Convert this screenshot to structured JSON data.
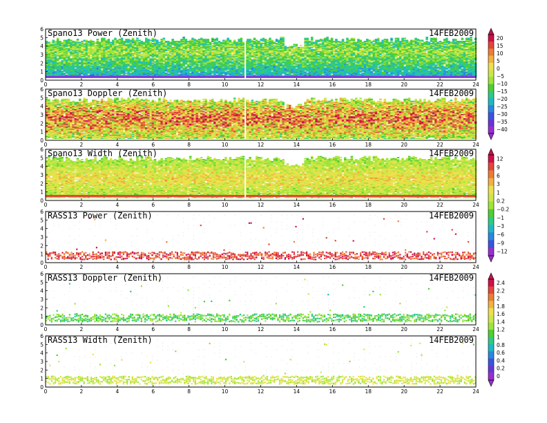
{
  "colorbars": [
    {
      "name": "power-doppler",
      "panels": [
        0,
        1
      ],
      "labels": [
        "20",
        "15",
        "10",
        "5",
        "0",
        "−5",
        "−10",
        "−15",
        "−20",
        "−25",
        "−30",
        "−35",
        "−40"
      ],
      "colors": [
        "#d0104a",
        "#e3463a",
        "#ee7d33",
        "#f3b23f",
        "#eee04c",
        "#cfe649",
        "#9ee53a",
        "#4fcf31",
        "#2fcb84",
        "#1fb8c8",
        "#2a88e0",
        "#3a55e0",
        "#6a35d8",
        "#9a2fd0"
      ]
    },
    {
      "name": "width",
      "panels": [
        2,
        3
      ],
      "labels": [
        "12",
        "9",
        "6",
        "3",
        "1",
        "0.2",
        "−0.2",
        "−1",
        "−3",
        "−6",
        "−9",
        "−12"
      ],
      "colors": [
        "#d0104a",
        "#e3463a",
        "#ee7d33",
        "#f3b23f",
        "#eee04c",
        "#cfe649",
        "#9ee53a",
        "#4fcf31",
        "#2fcb84",
        "#1fb8c8",
        "#2a88e0",
        "#3a55e0",
        "#9a2fd0"
      ]
    },
    {
      "name": "rass",
      "panels": [
        4,
        5
      ],
      "labels": [
        "2.4",
        "2.2",
        "2",
        "1.8",
        "1.6",
        "1.4",
        "1.2",
        "1",
        "0.8",
        "0.6",
        "0.4",
        "0.2",
        "0"
      ],
      "colors": [
        "#d0104a",
        "#e3463a",
        "#ee7d33",
        "#f3b23f",
        "#eee04c",
        "#cfe649",
        "#9ee53a",
        "#4fcf31",
        "#2fcb84",
        "#1fb8c8",
        "#2a88e0",
        "#3a55e0",
        "#6a35d8",
        "#9a2fd0"
      ]
    }
  ],
  "chart_data": [
    {
      "type": "heatmap",
      "title": "Spano13 Power (Zenith)",
      "date": "14FEB2009",
      "xlim": [
        0,
        24
      ],
      "ylim": [
        0,
        6
      ],
      "style": "dense",
      "base": 5,
      "xticks": [
        "0",
        "2",
        "4",
        "6",
        "8",
        "10",
        "12",
        "14",
        "16",
        "18",
        "20",
        "22",
        "24"
      ],
      "yticks": [
        "0",
        "1",
        "2",
        "3",
        "4",
        "5",
        "6"
      ],
      "band": {
        "from": 0.3,
        "to": 5.0,
        "center": 3.3,
        "hi": 4
      },
      "strip": {
        "y": 0.35,
        "color": "#7b3ad8"
      }
    },
    {
      "type": "heatmap",
      "title": "Spano13 Doppler (Zenith)",
      "date": "14FEB2009",
      "xlim": [
        0,
        24
      ],
      "ylim": [
        0,
        6
      ],
      "style": "dense",
      "base": 7,
      "xticks": [
        "0",
        "2",
        "4",
        "6",
        "8",
        "10",
        "12",
        "14",
        "16",
        "18",
        "20",
        "22",
        "24"
      ],
      "yticks": [
        "0",
        "1",
        "2",
        "3",
        "4",
        "5",
        "6"
      ],
      "band": {
        "from": 0.2,
        "to": 5.0,
        "center": 2.5,
        "hi": 8
      }
    },
    {
      "type": "heatmap",
      "title": "Spano13 Width (Zenith)",
      "date": "14FEB2009",
      "xlim": [
        0,
        24
      ],
      "ylim": [
        0,
        6
      ],
      "style": "dense",
      "base": 8,
      "xticks": [
        "0",
        "2",
        "4",
        "6",
        "8",
        "10",
        "12",
        "14",
        "16",
        "18",
        "20",
        "22",
        "24"
      ],
      "yticks": [
        "0",
        "1",
        "2",
        "3",
        "4",
        "5",
        "6"
      ],
      "band": {
        "from": 0.3,
        "to": 5.2,
        "center": 2.5,
        "hi": 2
      },
      "strip": {
        "y": 0.5,
        "color": "#e3463a"
      }
    },
    {
      "type": "scatter",
      "title": "RASS13 Power (Zenith)",
      "date": "14FEB2009",
      "xlim": [
        0,
        24
      ],
      "ylim": [
        0,
        6
      ],
      "style": "sparse",
      "base": 12,
      "xticks": [
        "0",
        "2",
        "4",
        "6",
        "8",
        "10",
        "12",
        "14",
        "16",
        "18",
        "20",
        "22",
        "24"
      ],
      "yticks": [
        "0",
        "1",
        "2",
        "3",
        "4",
        "5",
        "6"
      ]
    },
    {
      "type": "scatter",
      "title": "RASS13 Doppler (Zenith)",
      "date": "14FEB2009",
      "xlim": [
        0,
        24
      ],
      "ylim": [
        0,
        6
      ],
      "style": "sparse",
      "base": 6,
      "xticks": [
        "0",
        "2",
        "4",
        "6",
        "8",
        "10",
        "12",
        "14",
        "16",
        "18",
        "20",
        "22",
        "24"
      ],
      "yticks": [
        "0",
        "1",
        "2",
        "3",
        "4",
        "5",
        "6"
      ]
    },
    {
      "type": "scatter",
      "title": "RASS13 Width (Zenith)",
      "date": "14FEB2009",
      "xlim": [
        0,
        24
      ],
      "ylim": [
        0,
        6
      ],
      "style": "sparse",
      "base": 8,
      "xticks": [
        "0",
        "2",
        "4",
        "6",
        "8",
        "10",
        "12",
        "14",
        "16",
        "18",
        "20",
        "22",
        "24"
      ],
      "yticks": [
        "0",
        "1",
        "2",
        "3",
        "4",
        "5",
        "6"
      ]
    }
  ]
}
